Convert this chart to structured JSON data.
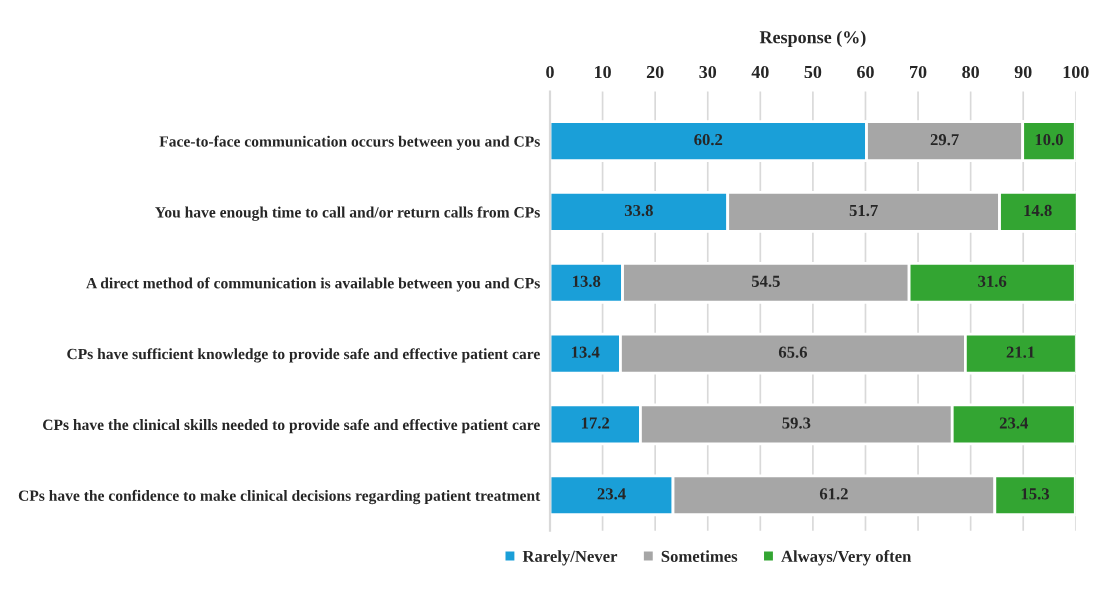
{
  "chart_data": {
    "type": "bar",
    "orientation": "horizontal",
    "stacked": true,
    "xlabel": "Response (%)",
    "categories": [
      "Face-to-face communication occurs between you and CPs",
      "You have enough time to call and/or return calls from CPs",
      "A direct method of communication is available between you and CPs",
      "CPs have sufficient knowledge to provide safe and effective patient care",
      "CPs have the clinical skills needed to provide safe and effective patient care",
      "CPs have the confidence to make clinical decisions regarding patient treatment"
    ],
    "series": [
      {
        "name": "Rarely/Never",
        "color": "#1a9fd8",
        "values": [
          60.2,
          33.8,
          13.8,
          13.4,
          17.2,
          23.4
        ]
      },
      {
        "name": "Sometimes",
        "color": "#a6a6a6",
        "values": [
          29.7,
          51.7,
          54.5,
          65.6,
          59.3,
          61.2
        ]
      },
      {
        "name": "Always/Very often",
        "color": "#33a532",
        "values": [
          10.0,
          14.8,
          31.6,
          21.1,
          23.4,
          15.3
        ],
        "value_labels": [
          "10.0",
          "14.8",
          "31.6",
          "21.1",
          "23.4",
          "15.3"
        ]
      }
    ],
    "xlim": [
      0,
      100
    ],
    "xticks": [
      0,
      10,
      20,
      30,
      40,
      50,
      60,
      70,
      80,
      90,
      100
    ],
    "grid": "x",
    "legend": "bottom",
    "data_labels": true
  }
}
